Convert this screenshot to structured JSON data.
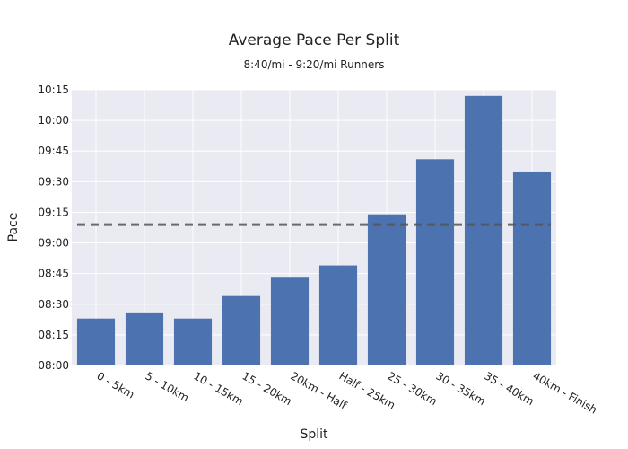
{
  "chart_data": {
    "type": "bar",
    "title": "Average Pace Per Split",
    "subtitle": "8:40/mi - 9:20/mi Runners",
    "xlabel": "Split",
    "ylabel": "Pace",
    "categories": [
      "0 - 5km",
      "5 - 10km",
      "10 - 15km",
      "15 - 20km",
      "20km - Half",
      "Half - 25km",
      "25 - 30km",
      "30 - 35km",
      "35 - 40km",
      "40km - Finish"
    ],
    "values_seconds": [
      503,
      506,
      503,
      514,
      523,
      529,
      554,
      581,
      612,
      575
    ],
    "reference_line_seconds": 549,
    "y_ticks": [
      "08:00",
      "08:15",
      "08:30",
      "08:45",
      "09:00",
      "09:15",
      "09:30",
      "09:45",
      "10:00",
      "10:15"
    ],
    "ylim_seconds": [
      480,
      615
    ],
    "grid": true,
    "bar_color": "#4c72b0",
    "reference_line_color": "#555555",
    "plot_background": "#eaeaf2"
  }
}
